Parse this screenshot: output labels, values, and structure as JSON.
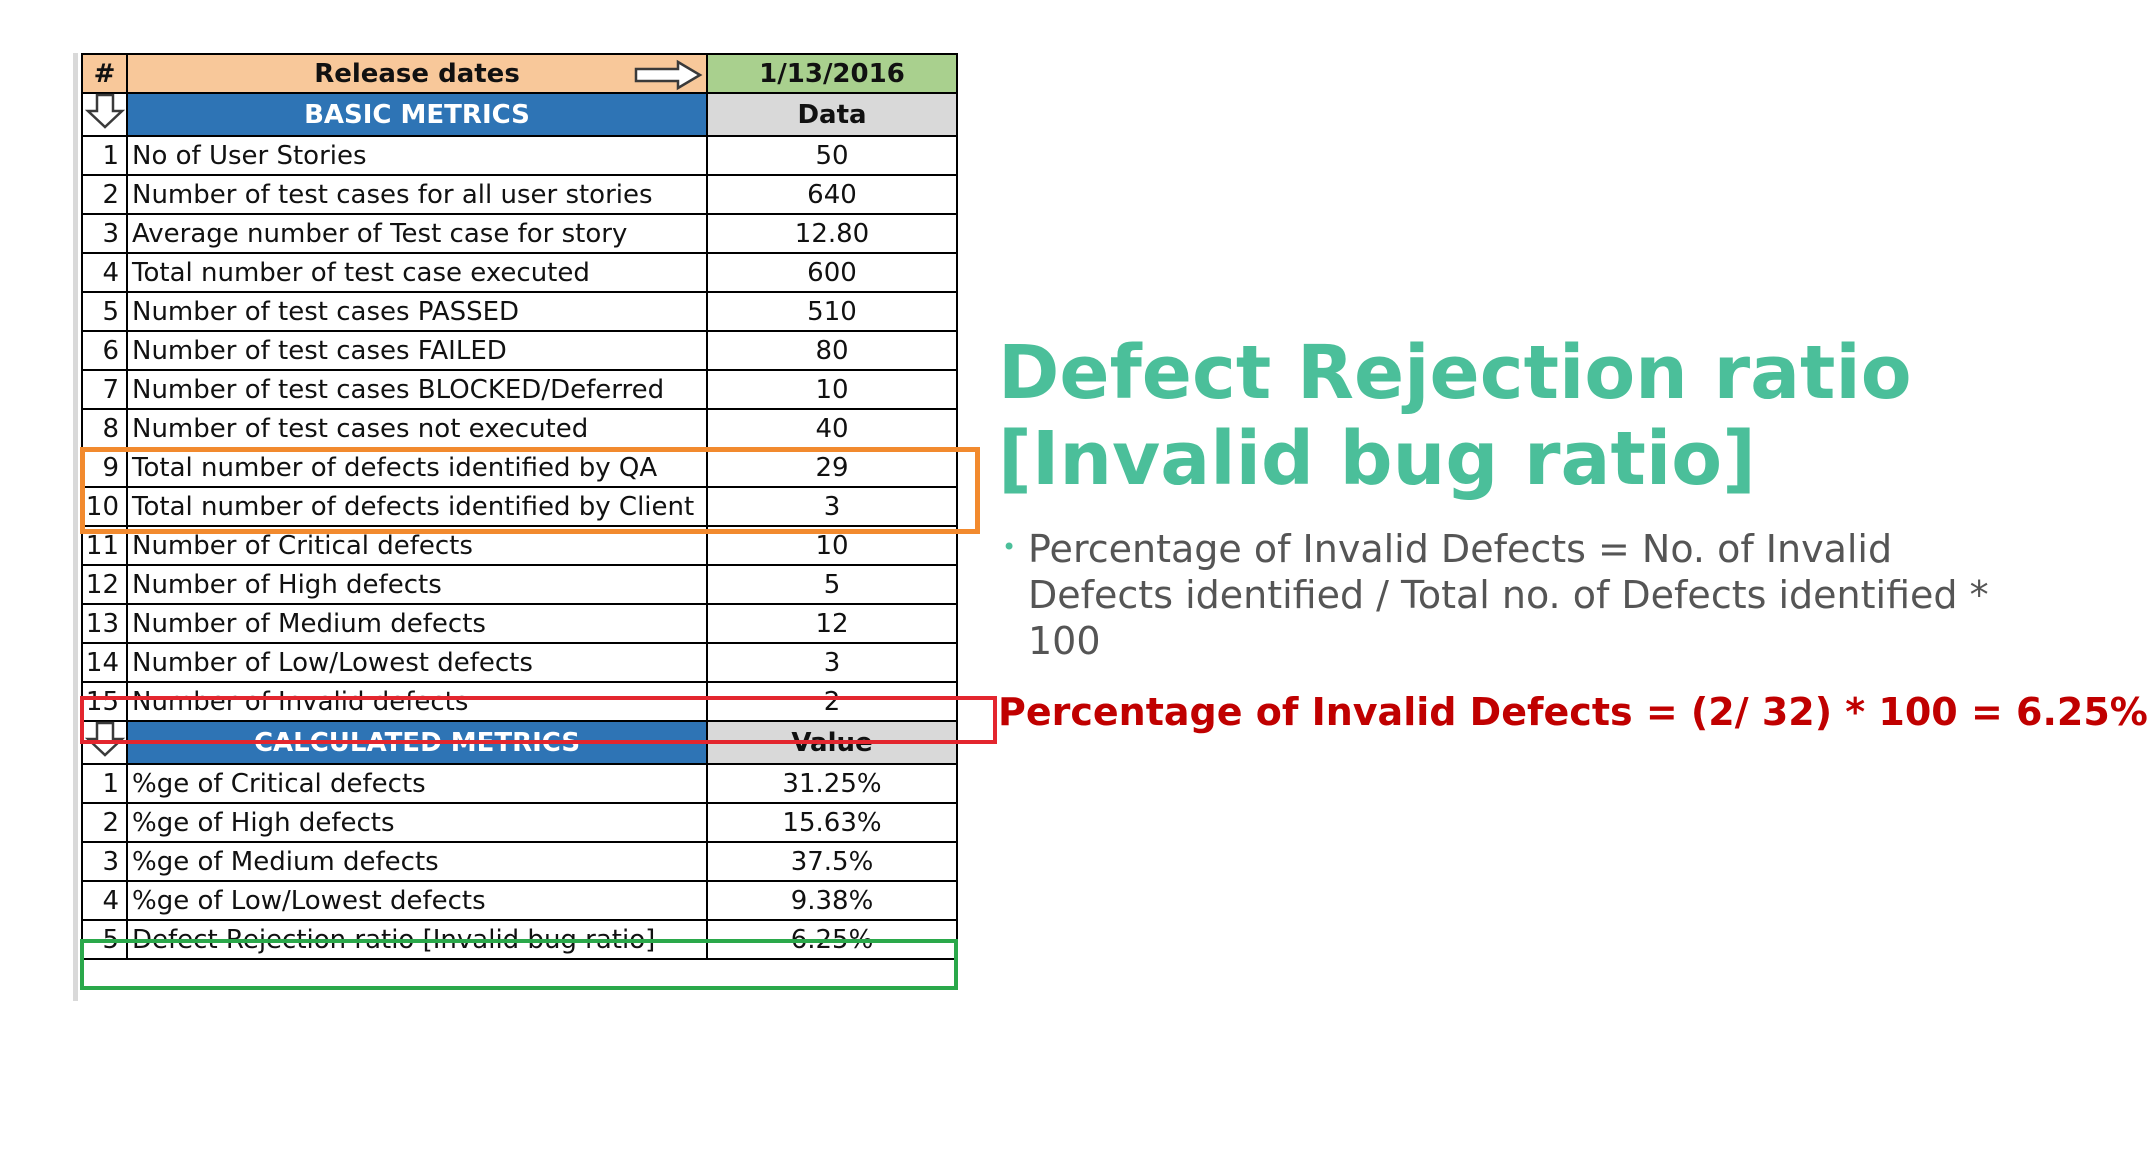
{
  "table": {
    "header": {
      "hash": "#",
      "release_label": "Release dates",
      "date": "1/13/2016"
    },
    "basic_section": {
      "title": "BASIC METRICS",
      "value_header": "Data"
    },
    "basic_rows": [
      {
        "n": "1",
        "label": "No of User Stories",
        "value": "50"
      },
      {
        "n": "2",
        "label": "Number  of test cases for all user stories",
        "value": "640"
      },
      {
        "n": "3",
        "label": "Average number of Test case for story",
        "value": "12.80"
      },
      {
        "n": "4",
        "label": "Total number of test case executed",
        "value": "600"
      },
      {
        "n": "5",
        "label": "Number of test cases PASSED",
        "value": "510"
      },
      {
        "n": "6",
        "label": "Number of  test cases FAILED",
        "value": "80"
      },
      {
        "n": "7",
        "label": "Number of test cases BLOCKED/Deferred",
        "value": "10"
      },
      {
        "n": "8",
        "label": "Number of test cases not executed",
        "value": "40"
      },
      {
        "n": "9",
        "label": "Total number of defects identified by QA",
        "value": "29"
      },
      {
        "n": "10",
        "label": "Total number of defects identified by Client",
        "value": "3"
      },
      {
        "n": "11",
        "label": "Number of Critical defects",
        "value": "10"
      },
      {
        "n": "12",
        "label": "Number of High defects",
        "value": "5"
      },
      {
        "n": "13",
        "label": "Number of Medium defects",
        "value": "12"
      },
      {
        "n": "14",
        "label": "Number of Low/Lowest defects",
        "value": "3"
      },
      {
        "n": "15",
        "label": "Number of Invalid defects",
        "value": "2"
      }
    ],
    "calc_section": {
      "title": "CALCULATED METRICS",
      "value_header": "Value"
    },
    "calc_rows": [
      {
        "n": "1",
        "label": "%ge of Critical defects",
        "value": "31.25%"
      },
      {
        "n": "2",
        "label": "%ge of High defects",
        "value": "15.63%"
      },
      {
        "n": "3",
        "label": "%ge of Medium defects",
        "value": "37.5%"
      },
      {
        "n": "4",
        "label": "%ge of Low/Lowest defects",
        "value": "9.38%"
      },
      {
        "n": "5",
        "label": "Defect Rejection ratio [Invalid bug ratio]",
        "value": "6.25%"
      }
    ]
  },
  "slide": {
    "title": "Defect Rejection ratio [Invalid bug ratio]",
    "bullet": "Percentage of Invalid Defects = No. of Invalid Defects identified / Total no. of Defects identified * 100",
    "formula": "Percentage of Invalid Defects = (2/ 32) * 100 = 6.25%"
  },
  "colors": {
    "title": "#4bbf9a",
    "formula": "#c00000",
    "header_peach": "#f8c89a",
    "header_green": "#a9d08e",
    "section_blue": "#2e74b5",
    "highlight_orange": "#f28a2e",
    "highlight_red": "#e3262e",
    "highlight_green": "#2aa84a"
  },
  "icons": [
    "arrow-right-icon",
    "arrow-down-icon"
  ]
}
